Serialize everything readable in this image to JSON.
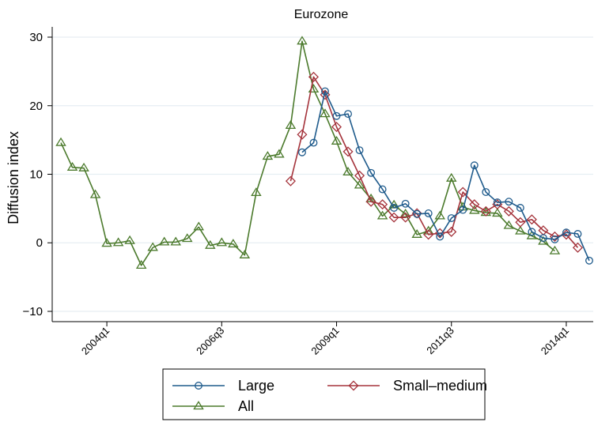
{
  "chart_data": {
    "type": "line",
    "title": "Eurozone",
    "xlabel": "",
    "ylabel": "Diffusion index",
    "ylim": [
      -11.5,
      31.5
    ],
    "yticks": [
      -10,
      0,
      10,
      20,
      30
    ],
    "x_start_label": "2003q1",
    "x_count": 47,
    "xticks": [
      {
        "index": 4,
        "label": "2004q1"
      },
      {
        "index": 14,
        "label": "2006q3"
      },
      {
        "index": 24,
        "label": "2009q1"
      },
      {
        "index": 34,
        "label": "2011q3"
      },
      {
        "index": 44,
        "label": "2014q1"
      }
    ],
    "grid": true,
    "legend_position": "bottom",
    "series": [
      {
        "name": "Large",
        "color": "#1f5b8c",
        "marker": "circle",
        "values": [
          null,
          null,
          null,
          null,
          null,
          null,
          null,
          null,
          null,
          null,
          null,
          null,
          null,
          null,
          null,
          null,
          null,
          null,
          null,
          null,
          null,
          13.2,
          14.6,
          22.1,
          18.5,
          18.8,
          13.5,
          10.2,
          7.8,
          5.1,
          5.7,
          4.2,
          4.3,
          0.9,
          3.6,
          4.8,
          11.3,
          7.4,
          5.9,
          6.0,
          5.1,
          1.6,
          0.7,
          0.5,
          1.5,
          1.3,
          -2.6
        ]
      },
      {
        "name": "Small–medium",
        "color": "#a5343c",
        "marker": "diamond",
        "values": [
          null,
          null,
          null,
          null,
          null,
          null,
          null,
          null,
          null,
          null,
          null,
          null,
          null,
          null,
          null,
          null,
          null,
          null,
          null,
          null,
          9.0,
          15.8,
          24.2,
          21.6,
          16.9,
          13.3,
          9.8,
          6.0,
          5.6,
          3.7,
          3.7,
          4.3,
          1.2,
          1.4,
          1.6,
          7.4,
          5.6,
          4.6,
          5.6,
          4.6,
          3.0,
          3.4,
          1.8,
          0.9,
          1.2,
          -0.7
        ]
      },
      {
        "name": "All",
        "color": "#4b7a2c",
        "marker": "triangle",
        "values": [
          14.6,
          11.0,
          10.9,
          7.0,
          -0.1,
          0.0,
          0.3,
          -3.3,
          -0.7,
          0.1,
          0.1,
          0.6,
          2.3,
          -0.4,
          0.0,
          -0.2,
          -1.8,
          7.3,
          12.6,
          12.9,
          17.1,
          29.4,
          22.4,
          18.8,
          14.8,
          10.3,
          8.4,
          6.4,
          3.9,
          5.5,
          4.2,
          1.2,
          1.7,
          3.9,
          9.4,
          5.2,
          4.7,
          4.4,
          4.3,
          2.5,
          1.7,
          1.0,
          0.2,
          -1.2
        ]
      }
    ]
  }
}
